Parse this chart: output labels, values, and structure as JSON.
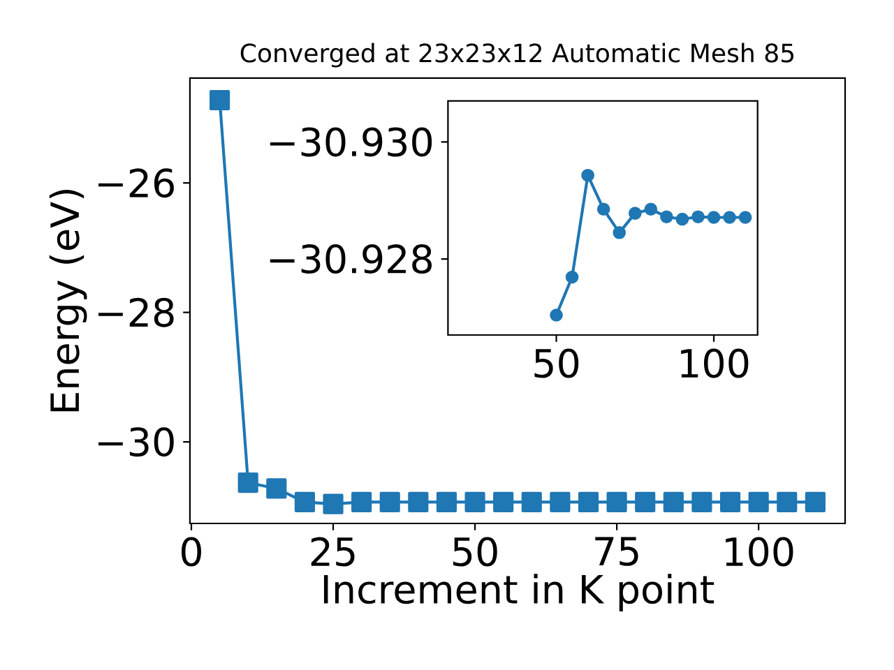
{
  "chart_data": [
    {
      "type": "line",
      "title": "Converged at 23x23x12 Automatic Mesh 85",
      "xlabel": "Increment in K point",
      "ylabel": "Energy (eV)",
      "x": [
        5,
        10,
        15,
        20,
        25,
        30,
        35,
        40,
        45,
        50,
        55,
        60,
        65,
        70,
        75,
        80,
        85,
        90,
        95,
        100,
        105,
        110
      ],
      "values": [
        -24.72,
        -30.63,
        -30.72,
        -30.93,
        -30.96,
        -30.93,
        -30.93,
        -30.93,
        -30.93,
        -30.93,
        -30.93,
        -30.93,
        -30.93,
        -30.93,
        -30.93,
        -30.93,
        -30.93,
        -30.93,
        -30.93,
        -30.93,
        -30.93,
        -30.93
      ],
      "color": "#1f77b4",
      "marker": "square",
      "line_style": "solid",
      "xlim": [
        -0.25,
        115.25
      ],
      "ylim": [
        -31.26,
        -24.38
      ],
      "xticks": [
        0,
        25,
        50,
        75,
        100
      ],
      "yticks": [
        {
          "value": -30,
          "label": "−30"
        },
        {
          "value": -28,
          "label": "−28"
        },
        {
          "value": -26,
          "label": "−26"
        }
      ]
    },
    {
      "type": "line",
      "x": [
        50,
        55,
        60,
        65,
        70,
        75,
        80,
        85,
        90,
        95,
        100,
        105,
        110
      ],
      "values": [
        -30.92704,
        -30.92769,
        -30.92943,
        -30.92885,
        -30.92845,
        -30.92878,
        -30.92885,
        -30.92872,
        -30.92868,
        -30.92872,
        -30.92871,
        -30.92871,
        -30.92871
      ],
      "color": "#1f77b4",
      "marker": "circle",
      "line_style": "solid",
      "xlim": [
        15.6,
        113.9
      ],
      "ylim": [
        -30.9267,
        -30.9307
      ],
      "xticks": [
        50,
        100
      ],
      "yticks": [
        {
          "value": -30.93,
          "label": "−30.930"
        },
        {
          "value": -30.928,
          "label": "−30.928"
        }
      ]
    }
  ]
}
